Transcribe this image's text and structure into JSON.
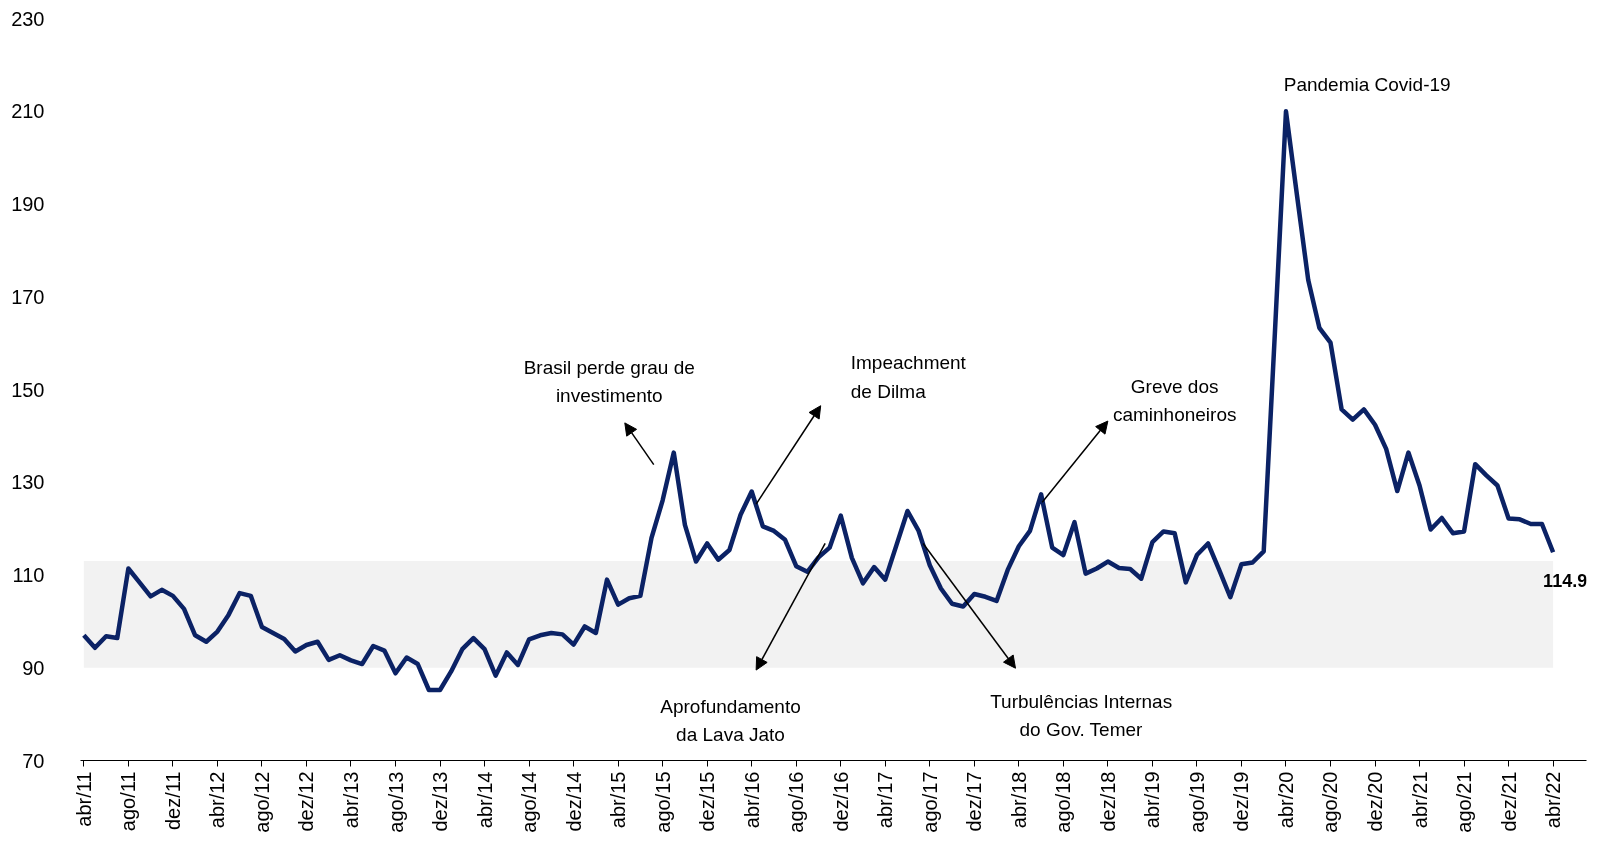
{
  "chart_data": {
    "type": "line",
    "categories": [
      "abr/11",
      null,
      null,
      null,
      "ago/11",
      null,
      null,
      null,
      "dez/11",
      null,
      null,
      null,
      "abr/12",
      null,
      null,
      null,
      "ago/12",
      null,
      null,
      null,
      "dez/12",
      null,
      null,
      null,
      "abr/13",
      null,
      null,
      null,
      "ago/13",
      null,
      null,
      null,
      "dez/13",
      null,
      null,
      null,
      "abr/14",
      null,
      null,
      null,
      "ago/14",
      null,
      null,
      null,
      "dez/14",
      null,
      null,
      null,
      "abr/15",
      null,
      null,
      null,
      "ago/15",
      null,
      null,
      null,
      "dez/15",
      null,
      null,
      null,
      "abr/16",
      null,
      null,
      null,
      "ago/16",
      null,
      null,
      null,
      "dez/16",
      null,
      null,
      null,
      "abr/17",
      null,
      null,
      null,
      "ago/17",
      null,
      null,
      null,
      "dez/17",
      null,
      null,
      null,
      "abr/18",
      null,
      null,
      null,
      "ago/18",
      null,
      null,
      null,
      "dez/18",
      null,
      null,
      null,
      "abr/19",
      null,
      null,
      null,
      "ago/19",
      null,
      null,
      null,
      "dez/19",
      null,
      null,
      null,
      "abr/20",
      null,
      null,
      null,
      "ago/20",
      null,
      null,
      null,
      "dez/20",
      null,
      null,
      null,
      "abr/21",
      null,
      null,
      null,
      "ago/21",
      null,
      null,
      null,
      "dez/21",
      null,
      null,
      null,
      "abr/22"
    ],
    "series": [
      {
        "color": "#0b2265",
        "values": [
          97,
          94.3,
          96.8,
          96.4,
          111.4,
          108.4,
          105.4,
          106.8,
          105.5,
          102.7,
          97,
          95.6,
          97.8,
          101.4,
          106.1,
          105.5,
          98.8,
          97.5,
          96.2,
          93.5,
          94.9,
          95.6,
          91.7,
          92.7,
          91.6,
          90.8,
          94.7,
          93.7,
          88.8,
          92.2,
          90.8,
          85.2,
          85.2,
          89.2,
          94,
          96.4,
          94,
          88.3,
          93.3,
          90.6,
          96.1,
          97,
          97.5,
          97.2,
          95,
          98.9,
          97.5,
          109,
          103.6,
          105,
          105.5,
          118,
          126.1,
          136.4,
          120.8,
          112.9,
          116.8,
          113.3,
          115.4,
          123,
          128,
          120.5,
          119.5,
          117.6,
          111.9,
          110.7,
          113.8,
          115.9,
          122.8,
          113.7,
          108.2,
          111.7,
          109,
          116.4,
          123.8,
          119.5,
          112.1,
          107.1,
          103.8,
          103.2,
          105.9,
          105.3,
          104.4,
          111.1,
          116.2,
          119.5,
          127.4,
          115.9,
          114.3,
          121.4,
          110.3,
          111.4,
          112.9,
          111.5,
          111.3,
          109.2,
          117.1,
          119.4,
          119,
          108.4,
          114.3,
          116.8,
          111.1,
          105.2,
          112.3,
          112.7,
          115.1,
          162,
          210,
          191.7,
          173.6,
          163.3,
          160.1,
          145.7,
          143.5,
          145.7,
          142.4,
          137.2,
          128.1,
          136.4,
          129.3,
          119.8,
          122.3,
          119,
          119.4,
          133.9,
          131.5,
          129.3,
          122.2,
          122,
          121,
          121,
          114.9
        ],
        "value_labels": [
          null,
          null,
          null,
          null,
          null,
          null,
          null,
          null,
          null,
          null,
          null,
          null,
          null,
          null,
          null,
          null,
          null,
          null,
          null,
          null,
          null,
          null,
          null,
          null,
          null,
          null,
          null,
          null,
          null,
          null,
          null,
          null,
          null,
          null,
          null,
          null,
          null,
          null,
          null,
          null,
          null,
          null,
          null,
          null,
          null,
          null,
          null,
          null,
          null,
          null,
          null,
          null,
          null,
          null,
          null,
          null,
          null,
          null,
          null,
          null,
          null,
          null,
          null,
          null,
          null,
          null,
          null,
          null,
          null,
          null,
          null,
          null,
          null,
          null,
          null,
          null,
          null,
          null,
          null,
          null,
          null,
          null,
          null,
          null,
          null,
          null,
          null,
          null,
          null,
          null,
          null,
          null,
          null,
          null,
          null,
          null,
          null,
          null,
          null,
          null,
          null,
          null,
          null,
          null,
          null,
          null,
          null,
          null,
          null,
          null,
          null,
          null,
          null,
          null,
          null,
          null,
          null,
          null,
          null,
          null,
          null,
          null,
          null,
          null,
          null,
          null,
          null,
          null,
          null,
          null,
          null,
          null,
          "114.9"
        ]
      }
    ],
    "ylim": [
      70,
      230
    ],
    "yticks": [
      70,
      90,
      110,
      130,
      150,
      170,
      190,
      210,
      230
    ],
    "bands": [
      {
        "axis": "y",
        "from": 90,
        "to": 113,
        "color": "#f2f2f2"
      }
    ],
    "annotations": [
      "Brasil perde grau de\ninvestimento",
      "Impeachment\nde Dilma",
      "Aprofundamento\nda Lava Jato",
      "Turbulências Internas\ndo Gov. Temer",
      "Greve dos\ncaminhoneiros",
      "Pandemia Covid-19"
    ],
    "grid": false,
    "marker": "none",
    "line_style": "solid"
  }
}
